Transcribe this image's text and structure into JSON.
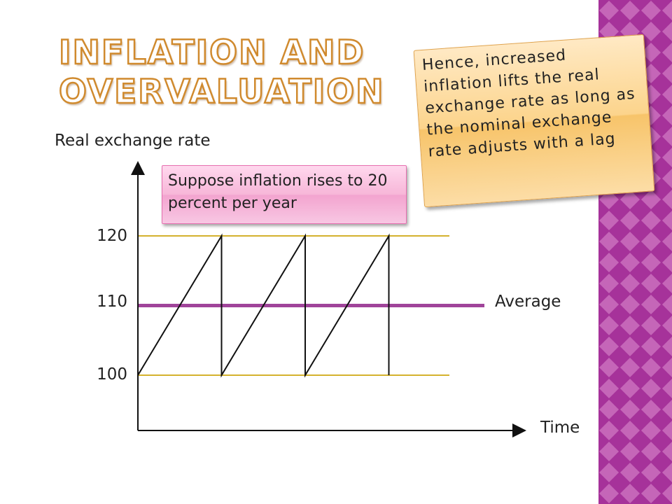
{
  "slide": {
    "title_lines": [
      "INFLATION AND",
      "OVERVALUATION"
    ],
    "sidebar_colors": [
      "#a6329a",
      "#c566b8"
    ]
  },
  "callouts": {
    "inflation_box": "Suppose inflation rises to 20 percent per year",
    "conclusion_box": "Hence, increased inflation lifts the real exchange rate as long as the nominal exchange rate adjusts with a lag"
  },
  "chart_data": {
    "type": "line",
    "xlabel": "Time",
    "ylabel": "Real exchange rate",
    "y_ticks": [
      "100",
      "110",
      "120"
    ],
    "y_range": [
      100,
      120
    ],
    "sawtooth_periods": 3,
    "reference_lines": [
      {
        "value": 120,
        "color": "#d4b22e"
      },
      {
        "value": 110,
        "label": "Average",
        "color": "#a0449a"
      },
      {
        "value": 100,
        "color": "#d4b22e"
      }
    ],
    "series": [
      {
        "x": [
          0,
          1,
          1,
          2,
          2,
          3,
          3
        ],
        "y": [
          100,
          120,
          100,
          120,
          100,
          120,
          100
        ]
      }
    ]
  }
}
